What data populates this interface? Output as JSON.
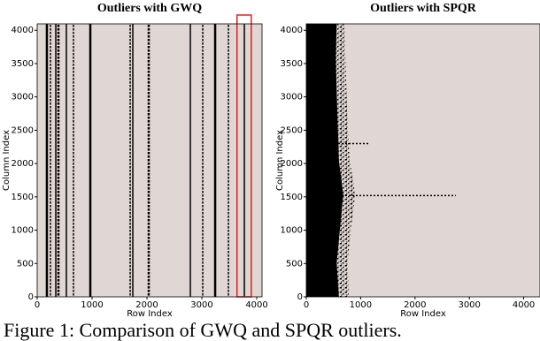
{
  "chart_data": [
    {
      "type": "stripes",
      "title": "Outliers with GWQ",
      "xlabel": "Row Index",
      "ylabel": "Column Index",
      "xlim": [
        0,
        4096
      ],
      "ylim": [
        0,
        4096
      ],
      "xticks": [
        0,
        1000,
        2000,
        3000,
        4000
      ],
      "yticks": [
        0,
        500,
        1000,
        1500,
        2000,
        2500,
        3000,
        3500,
        4000
      ],
      "background": "#e0d6d3",
      "color": "#000000",
      "x": [
        177,
        242,
        339,
        387,
        532,
        661,
        968,
        1694,
        1742,
        2032,
        2790,
        3016,
        3242,
        3484,
        3774
      ],
      "highlight": [
        3640,
        3900
      ],
      "highlight_color": "#e02020"
    },
    {
      "type": "area",
      "title": "Outliers with SPQR",
      "xlabel": "Row Index",
      "ylabel": "Column Index",
      "xlim": [
        0,
        4300
      ],
      "ylim": [
        0,
        4096
      ],
      "xticks": [
        0,
        1000,
        2000,
        3000,
        4000
      ],
      "yticks": [
        0,
        500,
        1000,
        1500,
        2000,
        2500,
        3000,
        3500,
        4000
      ],
      "background": "#e0d6d3",
      "color": "#000000",
      "y": [
        0,
        512,
        1024,
        1536,
        2048,
        2560,
        3072,
        3584,
        4096
      ],
      "core": [
        600,
        560,
        620,
        680,
        600,
        580,
        560,
        540,
        560
      ],
      "fringe": [
        780,
        760,
        820,
        900,
        800,
        760,
        740,
        720,
        700
      ],
      "streaks": {
        "y": [
          1520,
          2300
        ],
        "x": [
          2750,
          1150
        ]
      }
    }
  ],
  "caption": "Figure 1: Comparison of GWQ and SPQR outliers."
}
